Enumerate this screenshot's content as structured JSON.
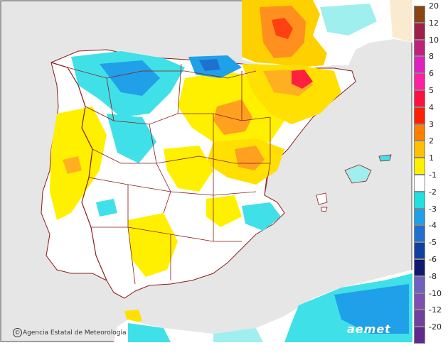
{
  "legend": {
    "entries": [
      {
        "label": "20",
        "color": "#8B4513"
      },
      {
        "label": "12",
        "color": "#A0204A"
      },
      {
        "label": "10",
        "color": "#C0207A"
      },
      {
        "label": "8",
        "color": "#E020C0"
      },
      {
        "label": "6",
        "color": "#FF20A0"
      },
      {
        "label": "5",
        "color": "#FF1040"
      },
      {
        "label": "4",
        "color": "#FF2000"
      },
      {
        "label": "3",
        "color": "#FF8000"
      },
      {
        "label": "2",
        "color": "#FFC000"
      },
      {
        "label": "1",
        "color": "#FFF000"
      },
      {
        "label": "-1",
        "color": "#FFFFFF"
      },
      {
        "label": "-2",
        "color": "#20E0E0"
      },
      {
        "label": "-3",
        "color": "#20A0E8"
      },
      {
        "label": "-4",
        "color": "#2070D0"
      },
      {
        "label": "-5",
        "color": "#1040A0"
      },
      {
        "label": "-6",
        "color": "#101870"
      },
      {
        "label": "-8",
        "color": "#7060C0"
      },
      {
        "label": "-10",
        "color": "#8050B0"
      },
      {
        "label": "-12",
        "color": "#7040A0"
      },
      {
        "label": "-20",
        "color": "#602890"
      }
    ]
  },
  "credit": {
    "icon": "copyright-icon",
    "text": "Agencia Estatal de Meteorología"
  },
  "logo": {
    "text": "aemet"
  },
  "colors": {
    "sea": "#E6E6E6",
    "land": "#FFFFFF",
    "border": "#8B1A1A"
  }
}
